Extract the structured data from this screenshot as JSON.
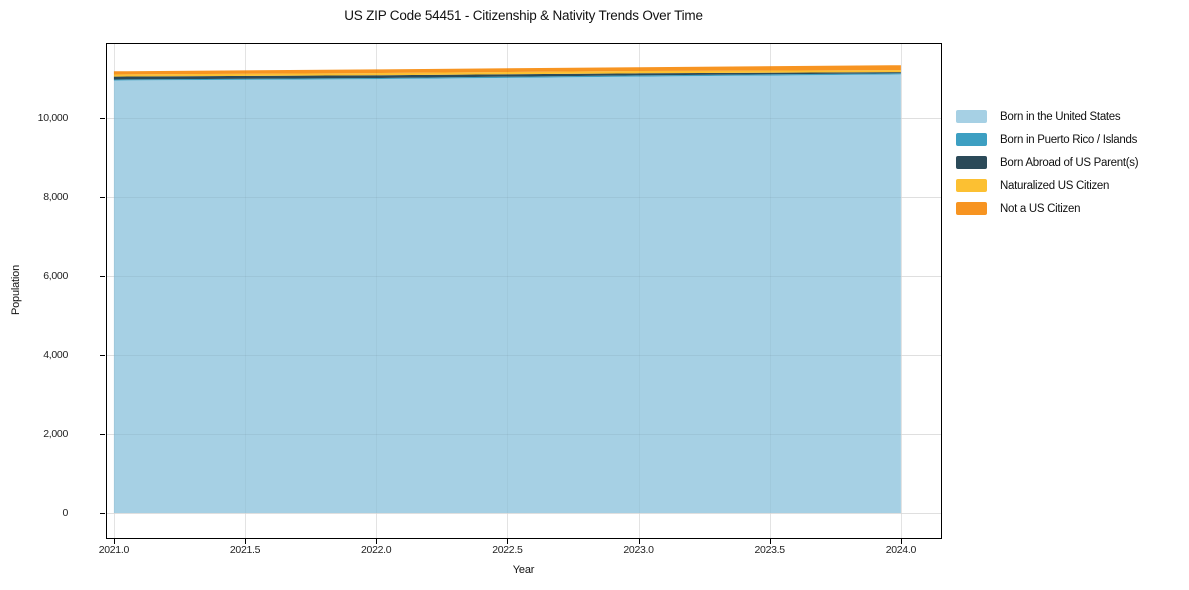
{
  "title": "US ZIP Code 54451 - Citizenship & Nativity Trends Over Time",
  "chart_data": {
    "type": "area",
    "stacked": true,
    "title": "US ZIP Code 54451 - Citizenship & Nativity Trends Over Time",
    "xlabel": "Year",
    "ylabel": "Population",
    "x": [
      2021,
      2022,
      2023,
      2024
    ],
    "series": [
      {
        "name": "Born in the United States",
        "color": "#a6d0e4",
        "values": [
          10950,
          10985,
          11048,
          11105
        ]
      },
      {
        "name": "Born in Puerto Rico / Islands",
        "color": "#3d9fc2",
        "values": [
          25,
          28,
          30,
          26
        ]
      },
      {
        "name": "Born Abroad of US Parent(s)",
        "color": "#2b4a59",
        "values": [
          74,
          68,
          55,
          32
        ]
      },
      {
        "name": "Naturalized US Citizen",
        "color": "#fcc032",
        "values": [
          52,
          55,
          57,
          50
        ]
      },
      {
        "name": "Not a US Citizen",
        "color": "#f79421",
        "values": [
          82,
          94,
          96,
          124
        ]
      }
    ],
    "x_ticks": [
      2021.0,
      2021.5,
      2022.0,
      2022.5,
      2023.0,
      2023.5,
      2024.0
    ],
    "x_tick_labels": [
      "2021.0",
      "2021.5",
      "2022.0",
      "2022.5",
      "2023.0",
      "2023.5",
      "2024.0"
    ],
    "y_ticks": [
      0,
      2000,
      4000,
      6000,
      8000,
      10000
    ],
    "y_tick_labels": [
      "0",
      "2,000",
      "4,000",
      "6,000",
      "8,000",
      "10,000"
    ],
    "xlim": [
      2020.97,
      2024.153
    ],
    "ylim": [
      -633,
      11899
    ],
    "grid": true,
    "legend_position": "right",
    "grid_color": "#ebebeb",
    "spine_color": "#000000",
    "text_color": "#111111"
  }
}
